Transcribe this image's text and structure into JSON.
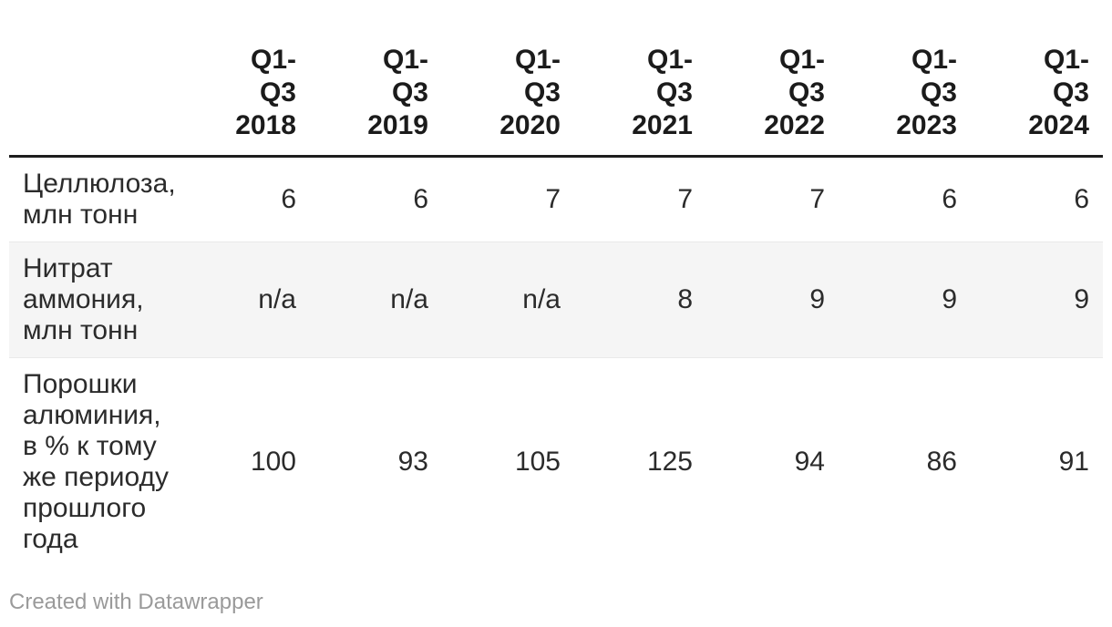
{
  "colors": {
    "header_text": "#1b1b1b",
    "body_text": "#2b2b2b",
    "stripe_bg": "#f5f5f5",
    "header_rule": "#1d1d1d",
    "credit_text": "#9a9a9a"
  },
  "table": {
    "columns": [
      {
        "label": "Q1-\nQ3\n2018"
      },
      {
        "label": "Q1-\nQ3\n2019"
      },
      {
        "label": "Q1-\nQ3\n2020"
      },
      {
        "label": "Q1-\nQ3\n2021"
      },
      {
        "label": "Q1-\nQ3\n2022"
      },
      {
        "label": "Q1-\nQ3\n2023"
      },
      {
        "label": "Q1-\nQ3\n2024"
      }
    ],
    "rows": [
      {
        "label": "Целлюлоза,\nмлн тонн",
        "values": [
          "6",
          "6",
          "7",
          "7",
          "7",
          "6",
          "6"
        ]
      },
      {
        "label": "Нитрат\nаммония,\nмлн тонн",
        "values": [
          "n/a",
          "n/a",
          "n/a",
          "8",
          "9",
          "9",
          "9"
        ]
      },
      {
        "label": "Порошки\nалюминия,\nв % к тому\nже периоду\nпрошлого\nгода",
        "values": [
          "100",
          "93",
          "105",
          "125",
          "94",
          "86",
          "91"
        ]
      }
    ]
  },
  "footer": {
    "credit": "Created with Datawrapper"
  },
  "chart_data": {
    "type": "table",
    "columns": [
      "Q1-Q3 2018",
      "Q1-Q3 2019",
      "Q1-Q3 2020",
      "Q1-Q3 2021",
      "Q1-Q3 2022",
      "Q1-Q3 2023",
      "Q1-Q3 2024"
    ],
    "rows": [
      {
        "label": "Целлюлоза, млн тонн",
        "values": [
          6,
          6,
          7,
          7,
          7,
          6,
          6
        ]
      },
      {
        "label": "Нитрат аммония, млн тонн",
        "values": [
          "n/a",
          "n/a",
          "n/a",
          8,
          9,
          9,
          9
        ]
      },
      {
        "label": "Порошки алюминия, в % к тому же периоду прошлого года",
        "values": [
          100,
          93,
          105,
          125,
          94,
          86,
          91
        ]
      }
    ]
  }
}
